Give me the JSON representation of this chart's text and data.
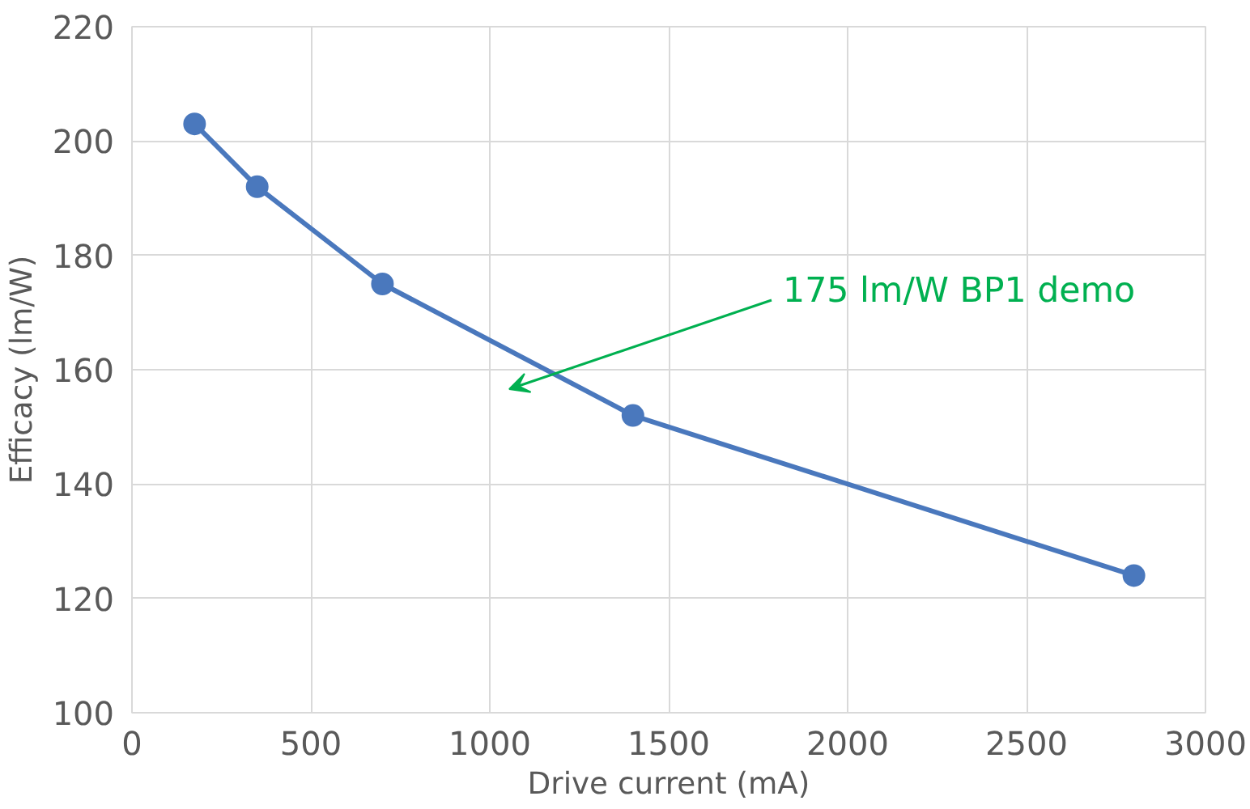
{
  "chart_data": {
    "type": "line",
    "xlabel": "Drive current (mA)",
    "ylabel": "Efficacy (lm/W)",
    "x": [
      175,
      350,
      700,
      1400,
      2800
    ],
    "series": [
      {
        "color": "#4a78bd",
        "values": [
          203,
          192,
          175,
          152,
          124
        ]
      }
    ],
    "xlim": [
      0,
      3000
    ],
    "xticks": [
      0,
      500,
      1000,
      1500,
      2000,
      2500,
      3000
    ],
    "ylim": [
      100,
      220
    ],
    "yticks": [
      100,
      120,
      140,
      160,
      180,
      200,
      220
    ],
    "grid": true,
    "marker": "circle",
    "line_style": "solid",
    "annotations": [
      "175 lm/W BP1 demo"
    ]
  }
}
